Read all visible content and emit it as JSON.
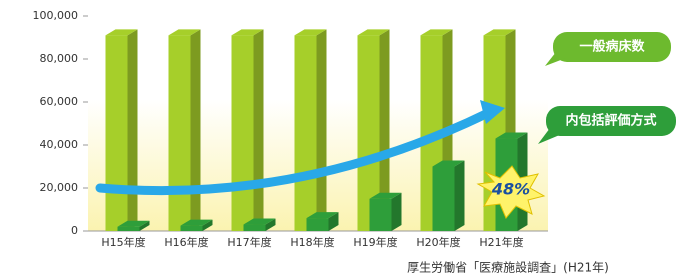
{
  "chart_data": {
    "type": "bar",
    "categories": [
      "H15年度",
      "H16年度",
      "H17年度",
      "H18年度",
      "H19年度",
      "H20年度",
      "H21年度"
    ],
    "series": [
      {
        "name": "一般病床数",
        "color": "#a6cf2a",
        "values": [
          91000,
          91000,
          91000,
          91000,
          91000,
          91000,
          91000
        ]
      },
      {
        "name": "内包括評価方式",
        "color": "#2e9e3a",
        "values": [
          2000,
          2500,
          3000,
          6000,
          15000,
          30000,
          43000
        ]
      }
    ],
    "ylim": [
      0,
      100000
    ],
    "yticks": [
      {
        "value": 0,
        "label": "0"
      },
      {
        "value": 20000,
        "label": "20,000"
      },
      {
        "value": 40000,
        "label": "40,000"
      },
      {
        "value": 60000,
        "label": "60,000"
      },
      {
        "value": 80000,
        "label": "80,000"
      },
      {
        "value": 100000,
        "label": "100,000"
      }
    ],
    "annotation": "48%",
    "source": "厚生労働省「医療施設調査」(H21年)"
  }
}
